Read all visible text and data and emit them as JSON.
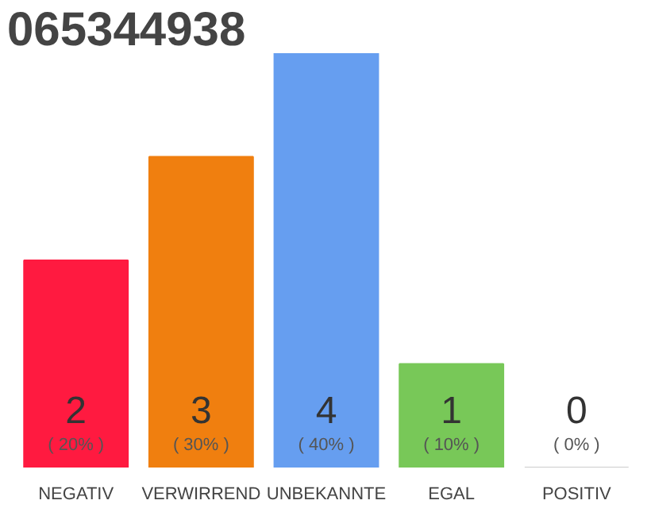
{
  "chart_data": {
    "type": "bar",
    "title": "065344938",
    "categories": [
      "NEGATIV",
      "VERWIRREND",
      "UNBEKANNTE",
      "EGAL",
      "POSITIV"
    ],
    "values": [
      20,
      30,
      40,
      10,
      0
    ],
    "colors": [
      "#ff1a40",
      "#f07f0f",
      "#669ef0",
      "#78c858",
      "#cccccc"
    ],
    "value_labels": [
      "( 20% )",
      "( 30% )",
      "( 40% )",
      "( 10% )",
      "( 0% )"
    ],
    "annotations": [
      "2",
      "3",
      "4",
      "1",
      "0"
    ],
    "grid": false
  }
}
